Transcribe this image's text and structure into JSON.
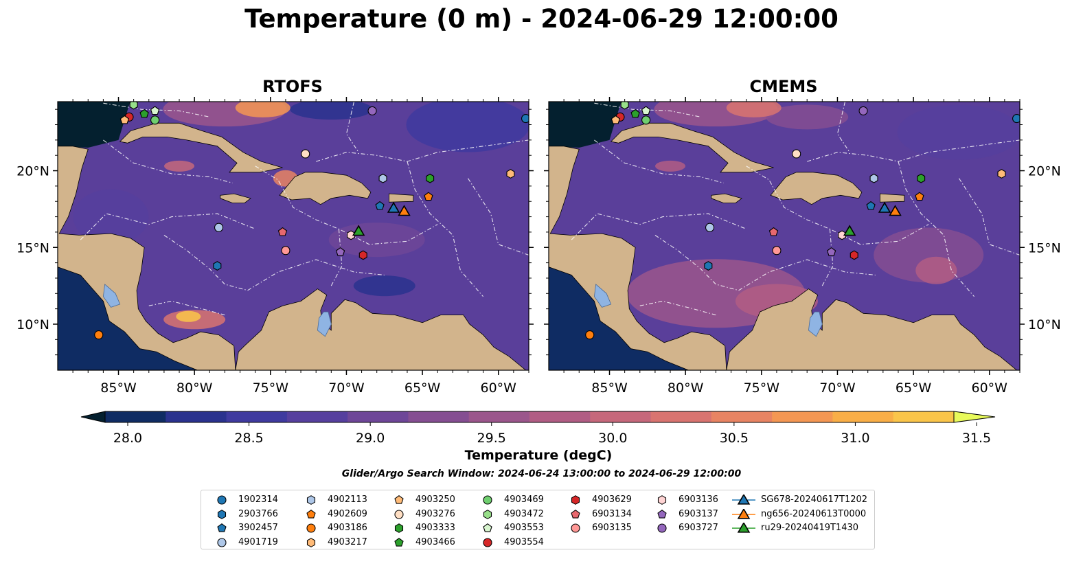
{
  "title": "Temperature (0 m) - 2024-06-29 12:00:00",
  "panels": [
    {
      "name": "RTOFS"
    },
    {
      "name": "CMEMS"
    }
  ],
  "lon_ticks": [
    "85°W",
    "80°W",
    "75°W",
    "70°W",
    "65°W",
    "60°W"
  ],
  "lon_values": [
    -85,
    -80,
    -75,
    -70,
    -65,
    -60
  ],
  "lat_ticks": [
    "20°N",
    "15°N",
    "10°N"
  ],
  "lat_values": [
    20,
    15,
    10
  ],
  "extent": {
    "lon_min": -89,
    "lon_max": -58,
    "lat_min": 7,
    "lat_max": 24.5
  },
  "colorbar": {
    "label": "Temperature (degC)",
    "min": 28.0,
    "max": 31.5,
    "step": 0.25,
    "tick_labels": [
      "28.0",
      "28.5",
      "29.0",
      "29.5",
      "30.0",
      "30.5",
      "31.0",
      "31.5"
    ],
    "colors": [
      "#04202f",
      "#0f2c63",
      "#2a328e",
      "#3f3a9f",
      "#563f9e",
      "#6e4698",
      "#854e92",
      "#9b568c",
      "#b15d84",
      "#c6687b",
      "#d97470",
      "#e88463",
      "#f49753",
      "#f9ae47",
      "#fac54a",
      "#f4dd4f",
      "#e8fa5b"
    ]
  },
  "search_window": "Glider/Argo Search Window: 2024-06-24 13:00:00 to 2024-06-29 12:00:00",
  "legend": [
    {
      "label": "1902314",
      "marker": "circle",
      "color": "#1f77b4"
    },
    {
      "label": "2903766",
      "marker": "hexagon",
      "color": "#1f77b4"
    },
    {
      "label": "3902457",
      "marker": "pentagon",
      "color": "#1f77b4"
    },
    {
      "label": "4901719",
      "marker": "circle",
      "color": "#aec7e8"
    },
    {
      "label": "4902113",
      "marker": "hexagon",
      "color": "#aec7e8"
    },
    {
      "label": "4902609",
      "marker": "pentagon",
      "color": "#ff7f0e"
    },
    {
      "label": "4903186",
      "marker": "circle",
      "color": "#ff7f0e"
    },
    {
      "label": "4903217",
      "marker": "hexagon",
      "color": "#ffbb78"
    },
    {
      "label": "4903250",
      "marker": "pentagon",
      "color": "#ffbb78"
    },
    {
      "label": "4903276",
      "marker": "circle",
      "color": "#ffdfc4"
    },
    {
      "label": "4903333",
      "marker": "hexagon",
      "color": "#2ca02c"
    },
    {
      "label": "4903466",
      "marker": "pentagon",
      "color": "#2ca02c"
    },
    {
      "label": "4903469",
      "marker": "circle",
      "color": "#6fcf6f"
    },
    {
      "label": "4903472",
      "marker": "hexagon",
      "color": "#98df8a"
    },
    {
      "label": "4903553",
      "marker": "pentagon",
      "color": "#d8f5cf"
    },
    {
      "label": "4903554",
      "marker": "circle",
      "color": "#d62728"
    },
    {
      "label": "4903629",
      "marker": "hexagon",
      "color": "#d62728"
    },
    {
      "label": "6903134",
      "marker": "pentagon",
      "color": "#e8686e"
    },
    {
      "label": "6903135",
      "marker": "circle",
      "color": "#ff9896"
    },
    {
      "label": "6903136",
      "marker": "hexagon",
      "color": "#ffd4d4"
    },
    {
      "label": "6903137",
      "marker": "pentagon",
      "color": "#9467bd"
    },
    {
      "label": "6903727",
      "marker": "circle",
      "color": "#9467bd"
    },
    {
      "label": "SG678-20240617T1202",
      "marker": "triangle",
      "color": "#1f77b4"
    },
    {
      "label": "ng656-20240613T0000",
      "marker": "triangle",
      "color": "#ff7f0e"
    },
    {
      "label": "ru29-20240419T1430",
      "marker": "triangle",
      "color": "#2ca02c"
    }
  ],
  "floats": [
    {
      "id": "1902314",
      "lon": -58.2,
      "lat": 23.4
    },
    {
      "id": "6903727",
      "lon": -68.3,
      "lat": 23.9
    },
    {
      "id": "4903276",
      "lon": -72.7,
      "lat": 21.1
    },
    {
      "id": "4902113",
      "lon": -67.6,
      "lat": 19.5
    },
    {
      "id": "4903333",
      "lon": -64.5,
      "lat": 19.5
    },
    {
      "id": "4903217",
      "lon": -59.2,
      "lat": 19.8
    },
    {
      "id": "4902609",
      "lon": -64.6,
      "lat": 18.3
    },
    {
      "id": "3902457",
      "lon": -67.8,
      "lat": 17.7
    },
    {
      "id": "4901719",
      "lon": -78.4,
      "lat": 16.3
    },
    {
      "id": "6903134",
      "lon": -74.2,
      "lat": 16.0
    },
    {
      "id": "6903135",
      "lon": -74.0,
      "lat": 14.8
    },
    {
      "id": "6903136",
      "lon": -69.7,
      "lat": 15.8
    },
    {
      "id": "6903137",
      "lon": -70.4,
      "lat": 14.7
    },
    {
      "id": "4903629",
      "lon": -68.9,
      "lat": 14.5
    },
    {
      "id": "2903766",
      "lon": -78.5,
      "lat": 13.8
    },
    {
      "id": "4903186",
      "lon": -86.3,
      "lat": 9.3
    },
    {
      "id": "4903554",
      "lon": -84.3,
      "lat": 23.5
    },
    {
      "id": "4903250",
      "lon": -84.6,
      "lat": 23.3
    },
    {
      "id": "4903472",
      "lon": -84.0,
      "lat": 24.3
    },
    {
      "id": "4903466",
      "lon": -83.3,
      "lat": 23.7
    },
    {
      "id": "4903553",
      "lon": -82.6,
      "lat": 23.9
    },
    {
      "id": "4903469",
      "lon": -82.6,
      "lat": 23.3
    }
  ],
  "gliders": [
    {
      "id": "SG678-20240617T1202",
      "lon": -66.9,
      "lat": 17.6
    },
    {
      "id": "ng656-20240613T0000",
      "lon": -66.2,
      "lat": 17.4
    },
    {
      "id": "ru29-20240419T1430",
      "lon": -69.2,
      "lat": 16.1
    }
  ]
}
